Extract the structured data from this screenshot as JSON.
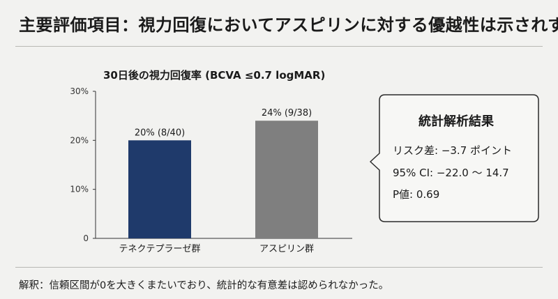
{
  "slide": {
    "title": "主要評価項目：視力回復においてアスピリンに対する優越性は示されず",
    "note": "解釈：信頼区間が0を大きくまたいでおり、統計的な有意差は認められなかった。"
  },
  "callout": {
    "heading": "統計解析結果",
    "lines": [
      "リスク差: −3.7 ポイント",
      "95% CI: −22.0 〜 14.7",
      "P値: 0.69"
    ]
  },
  "colors": {
    "bar_1": "#1f3a6b",
    "bar_2": "#7f7f7f",
    "background": "#f2f2f0"
  },
  "chart_data": {
    "type": "bar",
    "title": "30日後の視力回復率 (BCVA ≤0.7 logMAR)",
    "categories": [
      "テネクテプラーゼ群",
      "アスピリン群"
    ],
    "values": [
      20,
      24
    ],
    "data_labels": [
      "20% (8/40)",
      "24% (9/38)"
    ],
    "yticks": [
      "0",
      "10%",
      "20%",
      "30%"
    ],
    "ylim": [
      0,
      30
    ],
    "grid": false,
    "legend": "none"
  }
}
